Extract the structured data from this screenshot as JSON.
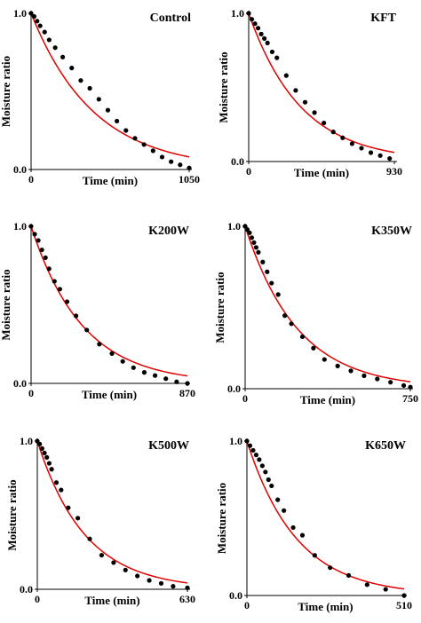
{
  "chart_data": [
    {
      "type": "scatter",
      "title": "Control",
      "xlabel": "Time (min)",
      "ylabel": "Moisture ratio",
      "xlim": [
        0,
        1050
      ],
      "ylim": [
        0,
        1.0
      ],
      "x_ticks": [
        "0",
        "1050"
      ],
      "y_ticks": [
        "0.0",
        "1.0"
      ],
      "series": [
        {
          "type": "scatter",
          "x": [
            0,
            20,
            40,
            60,
            90,
            120,
            160,
            210,
            270,
            330,
            390,
            450,
            510,
            570,
            630,
            690,
            750,
            810,
            870,
            930,
            990,
            1050
          ],
          "y": [
            1.0,
            0.98,
            0.95,
            0.92,
            0.88,
            0.83,
            0.78,
            0.72,
            0.65,
            0.57,
            0.52,
            0.45,
            0.38,
            0.31,
            0.25,
            0.2,
            0.16,
            0.12,
            0.08,
            0.05,
            0.03,
            0.01
          ]
        },
        {
          "type": "line",
          "k": 0.0024
        }
      ]
    },
    {
      "type": "scatter",
      "title": "KFT",
      "xlabel": "Time (min)",
      "ylabel": "Moisture ratio",
      "xlim": [
        0,
        930
      ],
      "ylim": [
        0,
        1.0
      ],
      "x_ticks": [
        "0",
        "930"
      ],
      "y_ticks": [
        "0.0",
        "1.0"
      ],
      "series": [
        {
          "type": "scatter",
          "x": [
            0,
            20,
            40,
            60,
            80,
            100,
            120,
            150,
            180,
            240,
            300,
            360,
            420,
            480,
            540,
            600,
            660,
            720,
            780,
            840,
            900
          ],
          "y": [
            1.0,
            0.96,
            0.93,
            0.9,
            0.86,
            0.83,
            0.8,
            0.74,
            0.7,
            0.58,
            0.48,
            0.4,
            0.33,
            0.26,
            0.2,
            0.16,
            0.12,
            0.09,
            0.06,
            0.04,
            0.02
          ]
        },
        {
          "type": "line",
          "k": 0.003
        }
      ]
    },
    {
      "type": "scatter",
      "title": "K200W",
      "xlabel": "Time (min)",
      "ylabel": "Moisture ratio",
      "xlim": [
        0,
        870
      ],
      "ylim": [
        0,
        1.0
      ],
      "x_ticks": [
        "0",
        "870"
      ],
      "y_ticks": [
        "0.0",
        "1.0"
      ],
      "series": [
        {
          "type": "scatter",
          "x": [
            0,
            20,
            40,
            60,
            80,
            100,
            130,
            160,
            200,
            250,
            310,
            380,
            450,
            510,
            570,
            630,
            690,
            750,
            810,
            870
          ],
          "y": [
            1.0,
            0.95,
            0.91,
            0.85,
            0.8,
            0.73,
            0.65,
            0.6,
            0.52,
            0.43,
            0.34,
            0.25,
            0.19,
            0.14,
            0.1,
            0.07,
            0.05,
            0.03,
            0.01,
            0.0
          ]
        },
        {
          "type": "line",
          "k": 0.0035
        }
      ]
    },
    {
      "type": "scatter",
      "title": "K350W",
      "xlabel": "Time (min)",
      "ylabel": "Moisture ratio",
      "xlim": [
        0,
        750
      ],
      "ylim": [
        0,
        1.0
      ],
      "x_ticks": [
        "0",
        "750"
      ],
      "y_ticks": [
        "0.0",
        "1.0"
      ],
      "series": [
        {
          "type": "scatter",
          "x": [
            0,
            10,
            20,
            30,
            40,
            50,
            60,
            80,
            100,
            120,
            150,
            180,
            210,
            260,
            310,
            360,
            420,
            480,
            540,
            600,
            660,
            720,
            750
          ],
          "y": [
            1.0,
            0.98,
            0.96,
            0.93,
            0.9,
            0.87,
            0.84,
            0.78,
            0.72,
            0.65,
            0.58,
            0.45,
            0.4,
            0.32,
            0.25,
            0.18,
            0.14,
            0.11,
            0.08,
            0.06,
            0.04,
            0.02,
            0.01
          ]
        },
        {
          "type": "line",
          "k": 0.0042
        }
      ]
    },
    {
      "type": "scatter",
      "title": "K500W",
      "xlabel": "Time (min)",
      "ylabel": "Moisture ratio",
      "xlim": [
        0,
        630
      ],
      "ylim": [
        0,
        1.0
      ],
      "x_ticks": [
        "0",
        "630"
      ],
      "y_ticks": [
        "0.0",
        "1.0"
      ],
      "series": [
        {
          "type": "scatter",
          "x": [
            0,
            10,
            20,
            30,
            40,
            50,
            60,
            80,
            100,
            130,
            170,
            220,
            270,
            320,
            370,
            420,
            470,
            520,
            570,
            630
          ],
          "y": [
            1.0,
            0.98,
            0.95,
            0.92,
            0.89,
            0.85,
            0.81,
            0.72,
            0.67,
            0.55,
            0.48,
            0.34,
            0.23,
            0.18,
            0.13,
            0.09,
            0.06,
            0.04,
            0.02,
            0.01
          ]
        },
        {
          "type": "line",
          "k": 0.005
        }
      ]
    },
    {
      "type": "scatter",
      "title": "K650W",
      "xlabel": "Time (min)",
      "ylabel": "Moisture ratio",
      "xlim": [
        0,
        510
      ],
      "ylim": [
        0,
        1.0
      ],
      "x_ticks": [
        "0",
        "510"
      ],
      "y_ticks": [
        "0.0",
        "1.0"
      ],
      "series": [
        {
          "type": "scatter",
          "x": [
            0,
            10,
            20,
            30,
            40,
            50,
            60,
            70,
            80,
            100,
            120,
            150,
            180,
            220,
            270,
            330,
            390,
            450,
            510
          ],
          "y": [
            1.0,
            0.97,
            0.94,
            0.91,
            0.88,
            0.84,
            0.8,
            0.75,
            0.71,
            0.62,
            0.55,
            0.44,
            0.39,
            0.26,
            0.18,
            0.13,
            0.07,
            0.04,
            0.0
          ]
        },
        {
          "type": "line",
          "k": 0.0062
        }
      ]
    }
  ]
}
